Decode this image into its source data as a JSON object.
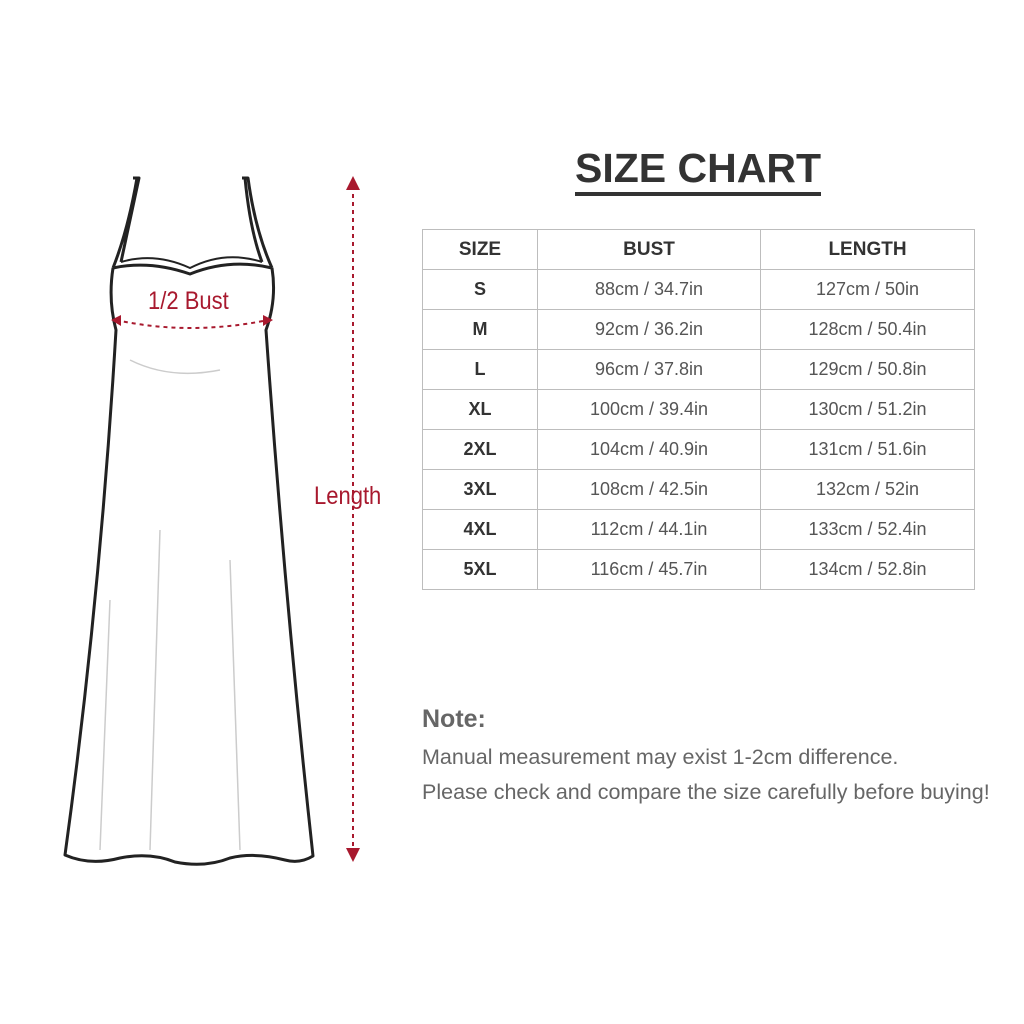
{
  "diagram": {
    "bust_label": "1/2 Bust",
    "length_label": "Length",
    "accent_color": "#a8192e"
  },
  "title": "SIZE CHART",
  "table": {
    "headers": [
      "SIZE",
      "BUST",
      "LENGTH"
    ],
    "rows": [
      [
        "S",
        "88cm / 34.7in",
        "127cm / 50in"
      ],
      [
        "M",
        "92cm / 36.2in",
        "128cm / 50.4in"
      ],
      [
        "L",
        "96cm / 37.8in",
        "129cm / 50.8in"
      ],
      [
        "XL",
        "100cm / 39.4in",
        "130cm / 51.2in"
      ],
      [
        "2XL",
        "104cm / 40.9in",
        "131cm / 51.6in"
      ],
      [
        "3XL",
        "108cm / 42.5in",
        "132cm / 52in"
      ],
      [
        "4XL",
        "112cm / 44.1in",
        "133cm / 52.4in"
      ],
      [
        "5XL",
        "116cm / 45.7in",
        "134cm / 52.8in"
      ]
    ]
  },
  "note": {
    "heading": "Note:",
    "lines": [
      "Manual measurement may exist 1-2cm difference.",
      "Please check and compare the size carefully before buying!"
    ]
  }
}
